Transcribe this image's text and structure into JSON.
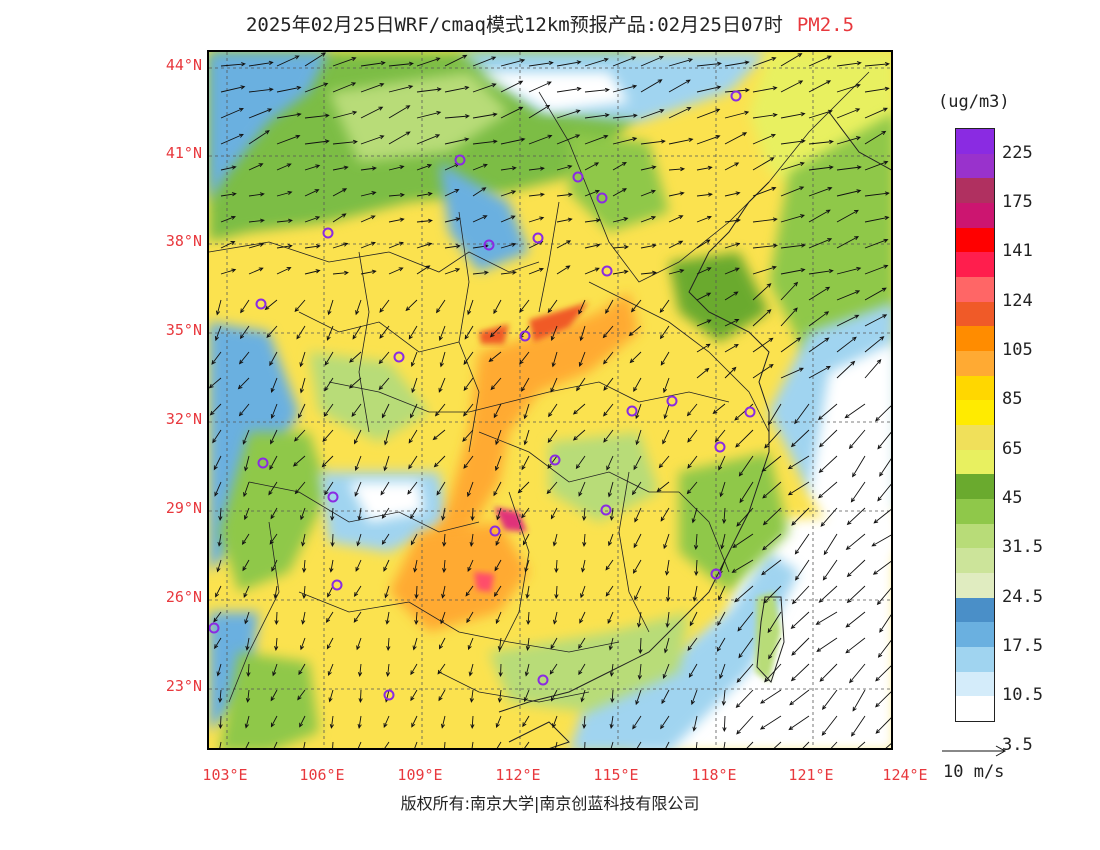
{
  "title": {
    "text": "2025年02月25日WRF/cmaq模式12km预报产品:02月25日07时",
    "species": "PM2.5"
  },
  "map": {
    "lat_labels": [
      "44°N",
      "41°N",
      "38°N",
      "35°N",
      "32°N",
      "29°N",
      "26°N",
      "23°N"
    ],
    "lon_labels": [
      "103°E",
      "106°E",
      "109°E",
      "112°E",
      "115°E",
      "118°E",
      "121°E",
      "124°E"
    ],
    "region": {
      "lon_min": 102.8,
      "lon_max": 124,
      "lat_min": 21,
      "lat_max": 44.5
    }
  },
  "legend": {
    "unit": "(ug/m3)",
    "labels": [
      "225",
      "175",
      "141",
      "124",
      "105",
      "85",
      "65",
      "45",
      "31.5",
      "24.5",
      "17.5",
      "10.5",
      "3.5"
    ],
    "colors": [
      "#8a2be2",
      "#9932cc",
      "#b03060",
      "#cc1570",
      "#ff0000",
      "#ff1e4d",
      "#ff6666",
      "#f05a28",
      "#ff8c00",
      "#ffaa33",
      "#ffd700",
      "#ffeb00",
      "#f0e05a",
      "#e8f060",
      "#6aaa2e",
      "#8fc84a",
      "#b8dc78",
      "#cce49a",
      "#e0ecc0",
      "#4a8fc8",
      "#6ab0e0",
      "#a0d4f0",
      "#d4ecfa",
      "#ffffff"
    ]
  },
  "wind_reference": {
    "label": "10 m/s"
  },
  "copyright": "版权所有:南京大学|南京创蓝科技有限公司"
}
